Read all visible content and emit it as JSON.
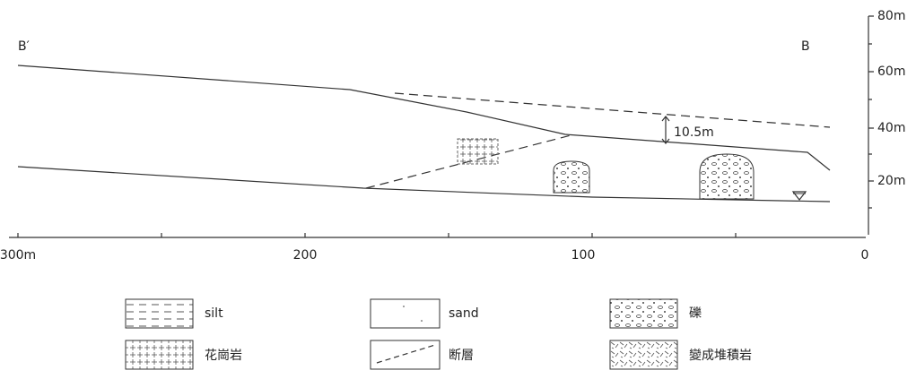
{
  "section": {
    "left_label": "B′",
    "right_label": "B",
    "annotation": "10.5m",
    "x_ticks": [
      "300m",
      "200",
      "100",
      "0"
    ],
    "y_ticks": [
      "80m",
      "60m",
      "40m",
      "20m"
    ]
  },
  "legend": [
    {
      "label": "silt"
    },
    {
      "label": "sand"
    },
    {
      "label": "礫"
    },
    {
      "label": "花崗岩"
    },
    {
      "label": "断層"
    },
    {
      "label": "變成堆積岩"
    }
  ]
}
